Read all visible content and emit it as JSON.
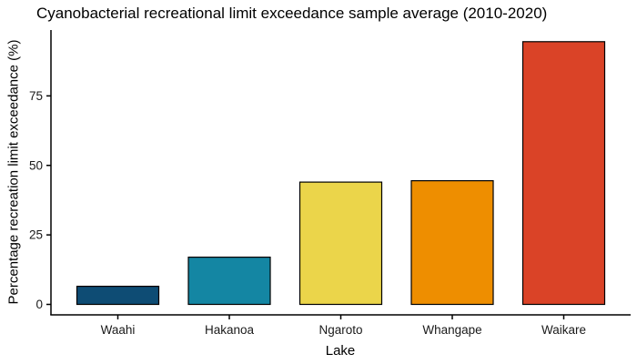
{
  "chart_data": {
    "type": "bar",
    "title": "Cyanobacterial recreational limit exceedance sample average (2010-2020)",
    "xlabel": "Lake",
    "ylabel": "Percentage recreation limit exceedance (%)",
    "categories": [
      "Waahi",
      "Hakanoa",
      "Ngaroto",
      "Whangape",
      "Waikare"
    ],
    "values": [
      6.5,
      17,
      44,
      44.5,
      94.5
    ],
    "bar_colors": [
      "#0E4C74",
      "#1486A3",
      "#EBD54A",
      "#EE8E00",
      "#DA4327"
    ],
    "bar_border_color": "#000000",
    "yticks": [
      0,
      25,
      50,
      75
    ],
    "ylim": [
      0,
      98
    ],
    "grid": false,
    "legend": false,
    "background": "#FFFFFF",
    "axis_color": "#000000",
    "tick_label_color": "#1a1a1a"
  }
}
